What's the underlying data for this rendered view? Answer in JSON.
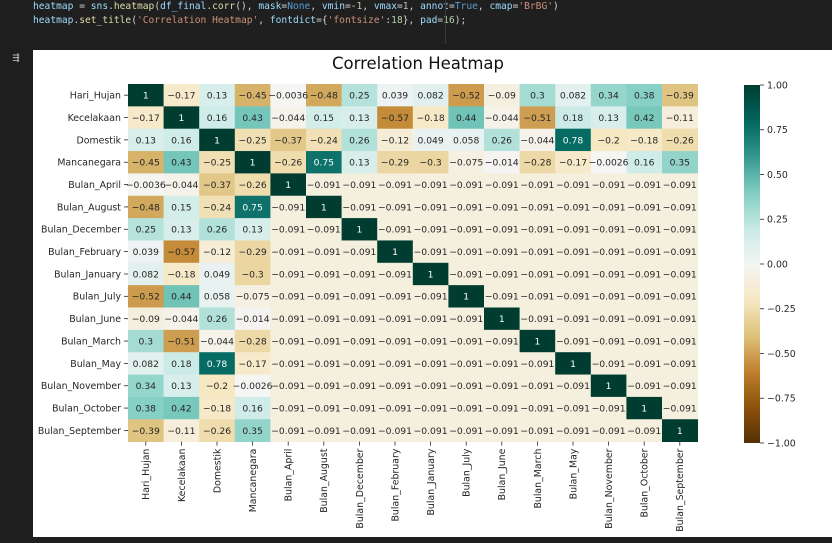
{
  "code": {
    "line1": "heatmap = sns.heatmap(df_final.corr(), mask=None, vmin=-1, vmax=1, annot=True, cmap='BrBG')",
    "line2": "heatmap.set_title('Correlation Heatmap', fontdict={'fontsize':18}, pad=16);"
  },
  "output_icon": "output-icon",
  "chart_data": {
    "type": "heatmap",
    "title": "Correlation Heatmap",
    "colormap": "BrBG",
    "vmin": -1,
    "vmax": 1,
    "rows": [
      "Hari_Hujan",
      "Kecelakaan",
      "Domestik",
      "Mancanegara",
      "Bulan_April",
      "Bulan_August",
      "Bulan_December",
      "Bulan_February",
      "Bulan_January",
      "Bulan_July",
      "Bulan_June",
      "Bulan_March",
      "Bulan_May",
      "Bulan_November",
      "Bulan_October",
      "Bulan_September"
    ],
    "columns": [
      "Hari_Hujan",
      "Kecelakaan",
      "Domestik",
      "Mancanegara",
      "Bulan_April",
      "Bulan_August",
      "Bulan_December",
      "Bulan_February",
      "Bulan_January",
      "Bulan_July",
      "Bulan_June",
      "Bulan_March",
      "Bulan_May",
      "Bulan_November",
      "Bulan_October",
      "Bulan_September"
    ],
    "values": [
      [
        1,
        -0.17,
        0.13,
        -0.45,
        -0.0036,
        -0.48,
        0.25,
        0.039,
        0.082,
        -0.52,
        -0.09,
        0.3,
        0.082,
        0.34,
        0.38,
        -0.39
      ],
      [
        -0.17,
        1,
        0.16,
        0.43,
        -0.044,
        0.15,
        0.13,
        -0.57,
        -0.18,
        0.44,
        -0.044,
        -0.51,
        0.18,
        0.13,
        0.42,
        -0.11
      ],
      [
        0.13,
        0.16,
        1,
        -0.25,
        -0.37,
        -0.24,
        0.26,
        -0.12,
        0.049,
        0.058,
        0.26,
        -0.044,
        0.78,
        -0.2,
        -0.18,
        -0.26
      ],
      [
        -0.45,
        0.43,
        -0.25,
        1,
        -0.26,
        0.75,
        0.13,
        -0.29,
        -0.3,
        -0.075,
        -0.014,
        -0.28,
        -0.17,
        -0.0026,
        0.16,
        0.35
      ],
      [
        -0.0036,
        -0.044,
        -0.37,
        -0.26,
        1,
        -0.091,
        -0.091,
        -0.091,
        -0.091,
        -0.091,
        -0.091,
        -0.091,
        -0.091,
        -0.091,
        -0.091,
        -0.091
      ],
      [
        -0.48,
        0.15,
        -0.24,
        0.75,
        -0.091,
        1,
        -0.091,
        -0.091,
        -0.091,
        -0.091,
        -0.091,
        -0.091,
        -0.091,
        -0.091,
        -0.091,
        -0.091
      ],
      [
        0.25,
        0.13,
        0.26,
        0.13,
        -0.091,
        -0.091,
        1,
        -0.091,
        -0.091,
        -0.091,
        -0.091,
        -0.091,
        -0.091,
        -0.091,
        -0.091,
        -0.091
      ],
      [
        0.039,
        -0.57,
        -0.12,
        -0.29,
        -0.091,
        -0.091,
        -0.091,
        1,
        -0.091,
        -0.091,
        -0.091,
        -0.091,
        -0.091,
        -0.091,
        -0.091,
        -0.091
      ],
      [
        0.082,
        -0.18,
        0.049,
        -0.3,
        -0.091,
        -0.091,
        -0.091,
        -0.091,
        1,
        -0.091,
        -0.091,
        -0.091,
        -0.091,
        -0.091,
        -0.091,
        -0.091
      ],
      [
        -0.52,
        0.44,
        0.058,
        -0.075,
        -0.091,
        -0.091,
        -0.091,
        -0.091,
        -0.091,
        1,
        -0.091,
        -0.091,
        -0.091,
        -0.091,
        -0.091,
        -0.091
      ],
      [
        -0.09,
        -0.044,
        0.26,
        -0.014,
        -0.091,
        -0.091,
        -0.091,
        -0.091,
        -0.091,
        -0.091,
        1,
        -0.091,
        -0.091,
        -0.091,
        -0.091,
        -0.091
      ],
      [
        0.3,
        -0.51,
        -0.044,
        -0.28,
        -0.091,
        -0.091,
        -0.091,
        -0.091,
        -0.091,
        -0.091,
        -0.091,
        1,
        -0.091,
        -0.091,
        -0.091,
        -0.091
      ],
      [
        0.082,
        0.18,
        0.78,
        -0.17,
        -0.091,
        -0.091,
        -0.091,
        -0.091,
        -0.091,
        -0.091,
        -0.091,
        -0.091,
        1,
        -0.091,
        -0.091,
        -0.091
      ],
      [
        0.34,
        0.13,
        -0.2,
        -0.0026,
        -0.091,
        -0.091,
        -0.091,
        -0.091,
        -0.091,
        -0.091,
        -0.091,
        -0.091,
        -0.091,
        1,
        -0.091,
        -0.091
      ],
      [
        0.38,
        0.42,
        -0.18,
        0.16,
        -0.091,
        -0.091,
        -0.091,
        -0.091,
        -0.091,
        -0.091,
        -0.091,
        -0.091,
        -0.091,
        -0.091,
        1,
        -0.091
      ],
      [
        -0.39,
        -0.11,
        -0.26,
        0.35,
        -0.091,
        -0.091,
        -0.091,
        -0.091,
        -0.091,
        -0.091,
        -0.091,
        -0.091,
        -0.091,
        -0.091,
        -0.091,
        1
      ]
    ],
    "colorbar_ticks": [
      1.0,
      0.75,
      0.5,
      0.25,
      0.0,
      -0.25,
      -0.5,
      -0.75,
      -1.0
    ],
    "colorbar_tick_labels": [
      "1.00",
      "0.75",
      "0.50",
      "0.25",
      "0.00",
      "−0.25",
      "−0.50",
      "−0.75",
      "−1.00"
    ]
  }
}
